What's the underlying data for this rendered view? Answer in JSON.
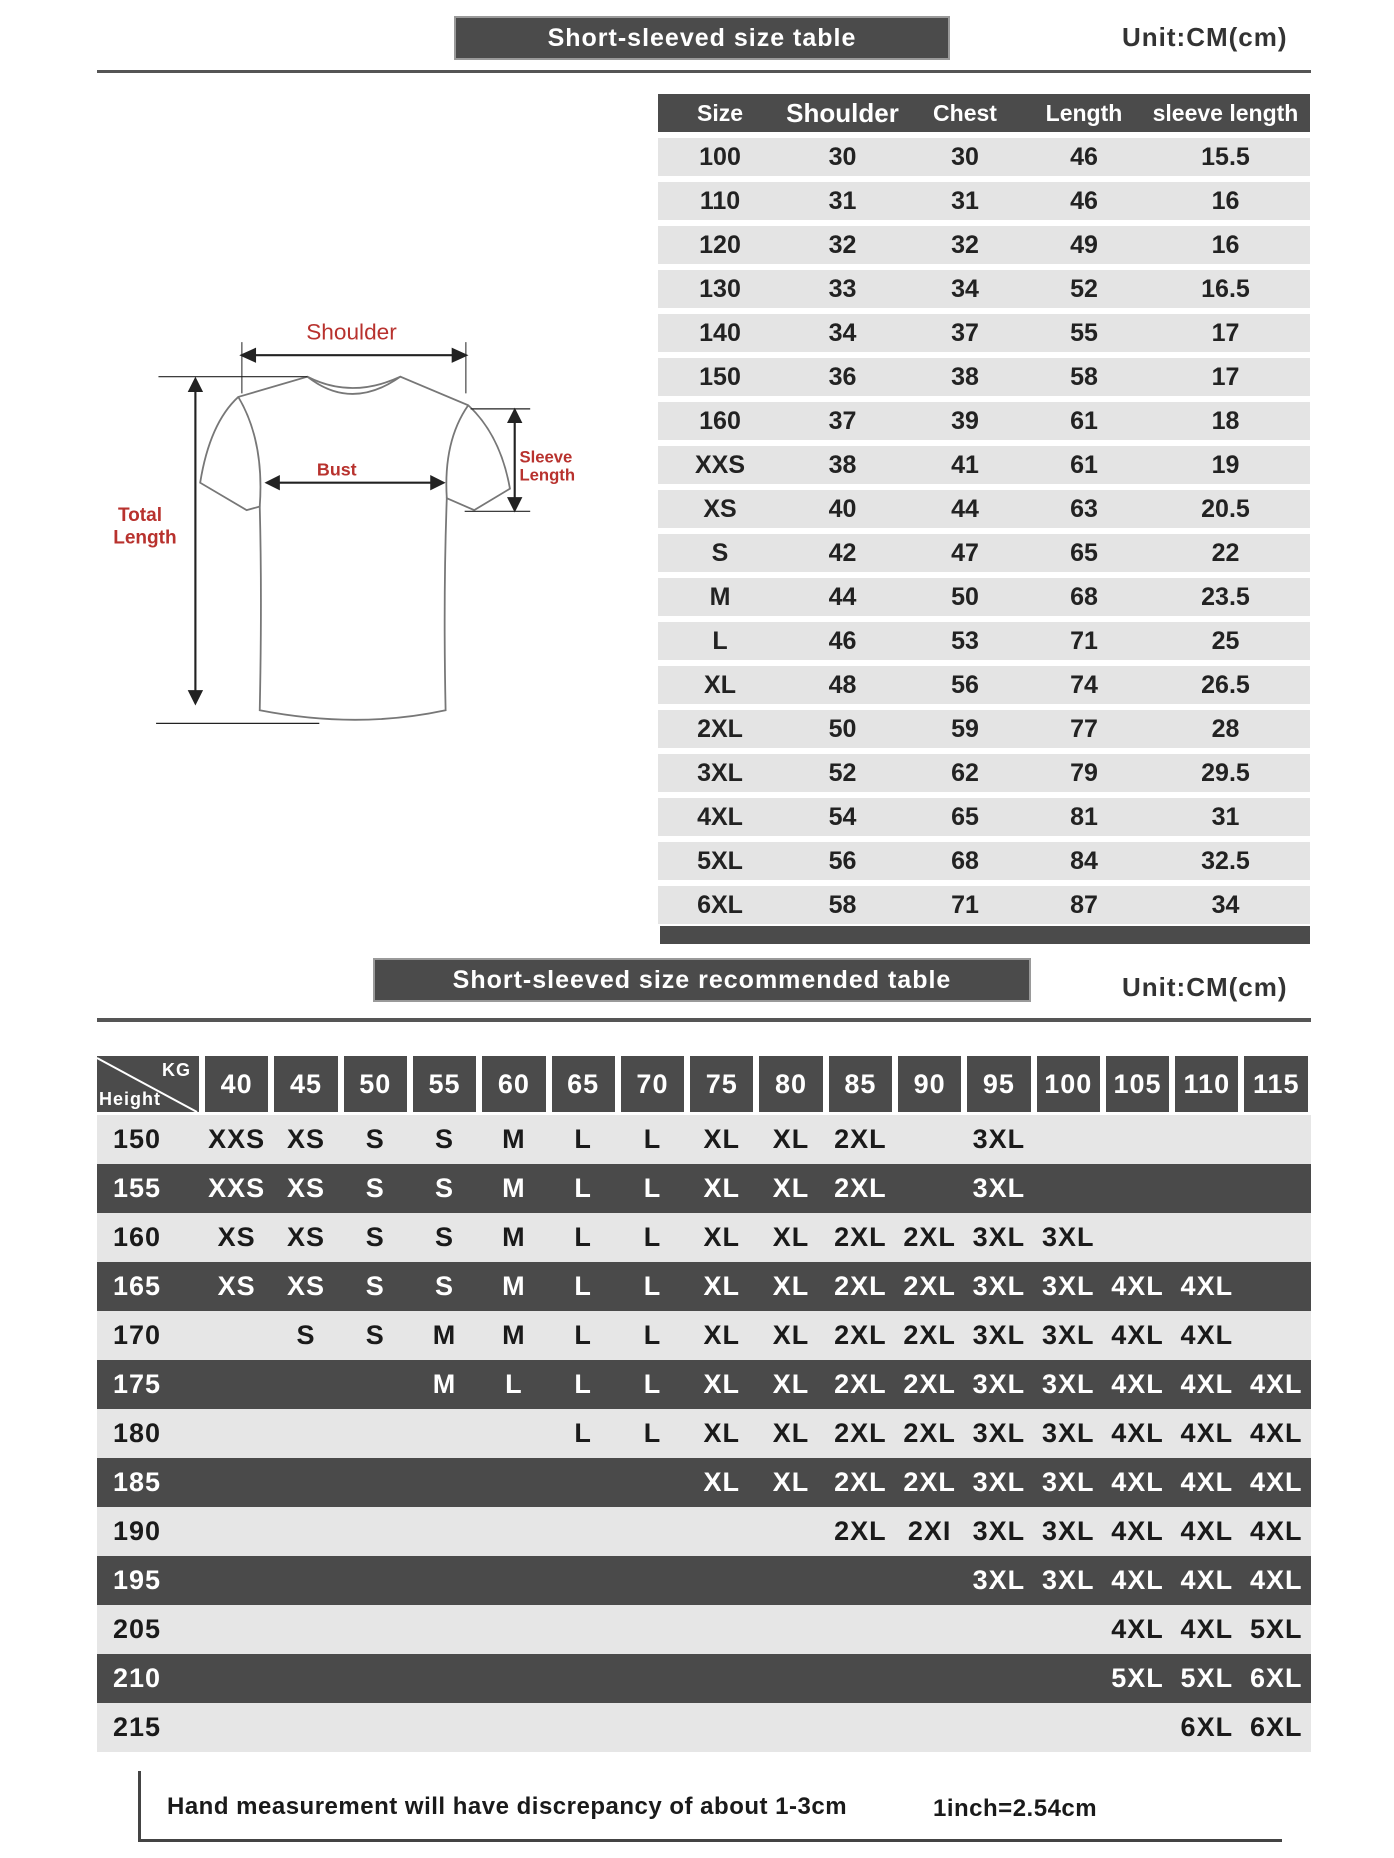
{
  "size_table": {
    "title": "Short-sleeved size  table",
    "unit": "Unit:CM(cm)",
    "headers": [
      "Size",
      "Shoulder",
      "Chest",
      "Length",
      "sleeve length"
    ],
    "rows": [
      [
        "100",
        "30",
        "30",
        "46",
        "15.5"
      ],
      [
        "110",
        "31",
        "31",
        "46",
        "16"
      ],
      [
        "120",
        "32",
        "32",
        "49",
        "16"
      ],
      [
        "130",
        "33",
        "34",
        "52",
        "16.5"
      ],
      [
        "140",
        "34",
        "37",
        "55",
        "17"
      ],
      [
        "150",
        "36",
        "38",
        "58",
        "17"
      ],
      [
        "160",
        "37",
        "39",
        "61",
        "18"
      ],
      [
        "XXS",
        "38",
        "41",
        "61",
        "19"
      ],
      [
        "XS",
        "40",
        "44",
        "63",
        "20.5"
      ],
      [
        "S",
        "42",
        "47",
        "65",
        "22"
      ],
      [
        "M",
        "44",
        "50",
        "68",
        "23.5"
      ],
      [
        "L",
        "46",
        "53",
        "71",
        "25"
      ],
      [
        "XL",
        "48",
        "56",
        "74",
        "26.5"
      ],
      [
        "2XL",
        "50",
        "59",
        "77",
        "28"
      ],
      [
        "3XL",
        "52",
        "62",
        "79",
        "29.5"
      ],
      [
        "4XL",
        "54",
        "65",
        "81",
        "31"
      ],
      [
        "5XL",
        "56",
        "68",
        "84",
        "32.5"
      ],
      [
        "6XL",
        "58",
        "71",
        "87",
        "34"
      ]
    ]
  },
  "diagram": {
    "shoulder": "Shoulder",
    "bust": "Bust",
    "sleeve": [
      "Sleeve",
      "Length"
    ],
    "total": [
      "Total",
      "Length"
    ]
  },
  "recommended_table": {
    "title": "Short-sleeved size recommended table",
    "unit": "Unit:CM(cm)",
    "corner_kg": "KG",
    "corner_height": "Height",
    "weights": [
      "40",
      "45",
      "50",
      "55",
      "60",
      "65",
      "70",
      "75",
      "80",
      "85",
      "90",
      "95",
      "100",
      "105",
      "110",
      "115"
    ],
    "rows": [
      {
        "height": "150",
        "sizes": [
          "XXS",
          "XS",
          "S",
          "S",
          "M",
          "L",
          "L",
          "XL",
          "XL",
          "2XL",
          "",
          "3XL",
          "",
          "",
          "",
          ""
        ]
      },
      {
        "height": "155",
        "sizes": [
          "XXS",
          "XS",
          "S",
          "S",
          "M",
          "L",
          "L",
          "XL",
          "XL",
          "2XL",
          "",
          "3XL",
          "",
          "",
          "",
          ""
        ]
      },
      {
        "height": "160",
        "sizes": [
          "XS",
          "XS",
          "S",
          "S",
          "M",
          "L",
          "L",
          "XL",
          "XL",
          "2XL",
          "2XL",
          "3XL",
          "3XL",
          "",
          "",
          ""
        ]
      },
      {
        "height": "165",
        "sizes": [
          "XS",
          "XS",
          "S",
          "S",
          "M",
          "L",
          "L",
          "XL",
          "XL",
          "2XL",
          "2XL",
          "3XL",
          "3XL",
          "4XL",
          "4XL",
          ""
        ]
      },
      {
        "height": "170",
        "sizes": [
          "",
          "S",
          "S",
          "M",
          "M",
          "L",
          "L",
          "XL",
          "XL",
          "2XL",
          "2XL",
          "3XL",
          "3XL",
          "4XL",
          "4XL",
          ""
        ]
      },
      {
        "height": "175",
        "sizes": [
          "",
          "",
          "",
          "M",
          "L",
          "L",
          "L",
          "XL",
          "XL",
          "2XL",
          "2XL",
          "3XL",
          "3XL",
          "4XL",
          "4XL",
          "4XL"
        ]
      },
      {
        "height": "180",
        "sizes": [
          "",
          "",
          "",
          "",
          "",
          "L",
          "L",
          "XL",
          "XL",
          "2XL",
          "2XL",
          "3XL",
          "3XL",
          "4XL",
          "4XL",
          "4XL"
        ]
      },
      {
        "height": "185",
        "sizes": [
          "",
          "",
          "",
          "",
          "",
          "",
          "",
          "XL",
          "XL",
          "2XL",
          "2XL",
          "3XL",
          "3XL",
          "4XL",
          "4XL",
          "4XL"
        ]
      },
      {
        "height": "190",
        "sizes": [
          "",
          "",
          "",
          "",
          "",
          "",
          "",
          "",
          "",
          "2XL",
          "2XI",
          "3XL",
          "3XL",
          "4XL",
          "4XL",
          "4XL"
        ]
      },
      {
        "height": "195",
        "sizes": [
          "",
          "",
          "",
          "",
          "",
          "",
          "",
          "",
          "",
          "",
          "",
          "3XL",
          "3XL",
          "4XL",
          "4XL",
          "4XL"
        ]
      },
      {
        "height": "205",
        "sizes": [
          "",
          "",
          "",
          "",
          "",
          "",
          "",
          "",
          "",
          "",
          "",
          "",
          "",
          "4XL",
          "4XL",
          "5XL"
        ]
      },
      {
        "height": "210",
        "sizes": [
          "",
          "",
          "",
          "",
          "",
          "",
          "",
          "",
          "",
          "",
          "",
          "",
          "",
          "5XL",
          "5XL",
          "6XL"
        ]
      },
      {
        "height": "215",
        "sizes": [
          "",
          "",
          "",
          "",
          "",
          "",
          "",
          "",
          "",
          "",
          "",
          "",
          "",
          "",
          "6XL",
          "6XL"
        ]
      }
    ]
  },
  "footer": {
    "note": "Hand measurement will have discrepancy of about  1-3cm",
    "conversion": "1inch=2.54cm"
  },
  "colors": {
    "dark": "#4a4a4a",
    "light_row": "#e6e6e6",
    "diagram_label": "#b8322e"
  }
}
